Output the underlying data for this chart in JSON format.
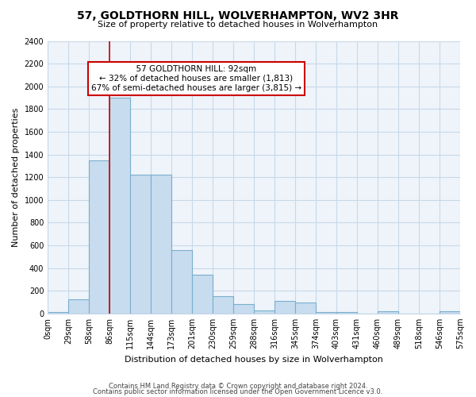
{
  "title": "57, GOLDTHORN HILL, WOLVERHAMPTON, WV2 3HR",
  "subtitle": "Size of property relative to detached houses in Wolverhampton",
  "xlabel": "Distribution of detached houses by size in Wolverhampton",
  "ylabel": "Number of detached properties",
  "bin_labels": [
    "0sqm",
    "29sqm",
    "58sqm",
    "86sqm",
    "115sqm",
    "144sqm",
    "173sqm",
    "201sqm",
    "230sqm",
    "259sqm",
    "288sqm",
    "316sqm",
    "345sqm",
    "374sqm",
    "403sqm",
    "431sqm",
    "460sqm",
    "489sqm",
    "518sqm",
    "546sqm",
    "575sqm"
  ],
  "bar_heights": [
    10,
    125,
    1350,
    1900,
    1220,
    1220,
    560,
    340,
    155,
    80,
    30,
    110,
    100,
    15,
    15,
    0,
    20,
    0,
    0,
    20
  ],
  "bar_color": "#C8DCEF",
  "bar_edge_color": "#7AAECD",
  "marker_label": "57 GOLDTHORN HILL: 92sqm",
  "annotation_line1": "← 32% of detached houses are smaller (1,813)",
  "annotation_line2": "67% of semi-detached houses are larger (3,815) →",
  "annotation_box_color": "#ffffff",
  "annotation_box_edge": "#cc0000",
  "marker_line_color": "#cc0000",
  "ylim": [
    0,
    2400
  ],
  "yticks": [
    0,
    200,
    400,
    600,
    800,
    1000,
    1200,
    1400,
    1600,
    1800,
    2000,
    2200,
    2400
  ],
  "footer_line1": "Contains HM Land Registry data © Crown copyright and database right 2024.",
  "footer_line2": "Contains public sector information licensed under the Open Government Licence v3.0.",
  "background_color": "#ffffff",
  "grid_color": "#c8d8e8",
  "title_fontsize": 10,
  "subtitle_fontsize": 8,
  "ylabel_fontsize": 8,
  "xlabel_fontsize": 8,
  "tick_fontsize": 7,
  "annotation_fontsize": 7.5,
  "footer_fontsize": 6
}
